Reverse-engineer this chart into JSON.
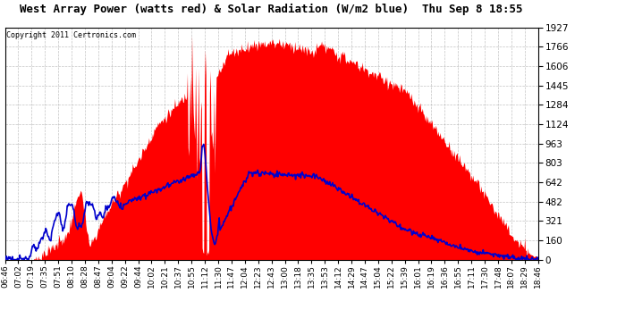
{
  "title": "West Array Power (watts red) & Solar Radiation (W/m2 blue)  Thu Sep 8 18:55",
  "copyright": "Copyright 2011 Certronics.com",
  "y_max": 1926.6,
  "y_min": 0.0,
  "y_ticks": [
    0.0,
    160.5,
    321.1,
    481.6,
    642.2,
    802.7,
    963.3,
    1123.8,
    1284.4,
    1444.9,
    1605.5,
    1766.0,
    1926.6
  ],
  "background_color": "#ffffff",
  "plot_bg_color": "#ffffff",
  "red_color": "#ff0000",
  "blue_color": "#0000cc",
  "grid_color": "#aaaaaa",
  "x_ticks_labels": [
    "06:46",
    "07:02",
    "07:19",
    "07:35",
    "07:51",
    "08:10",
    "08:28",
    "08:47",
    "09:04",
    "09:22",
    "09:44",
    "10:02",
    "10:21",
    "10:37",
    "10:55",
    "11:12",
    "11:30",
    "11:47",
    "12:04",
    "12:23",
    "12:43",
    "13:00",
    "13:18",
    "13:35",
    "13:53",
    "14:12",
    "14:29",
    "14:47",
    "15:04",
    "15:22",
    "15:39",
    "16:01",
    "16:19",
    "16:36",
    "16:55",
    "17:11",
    "17:30",
    "17:48",
    "18:07",
    "18:29",
    "18:46"
  ]
}
